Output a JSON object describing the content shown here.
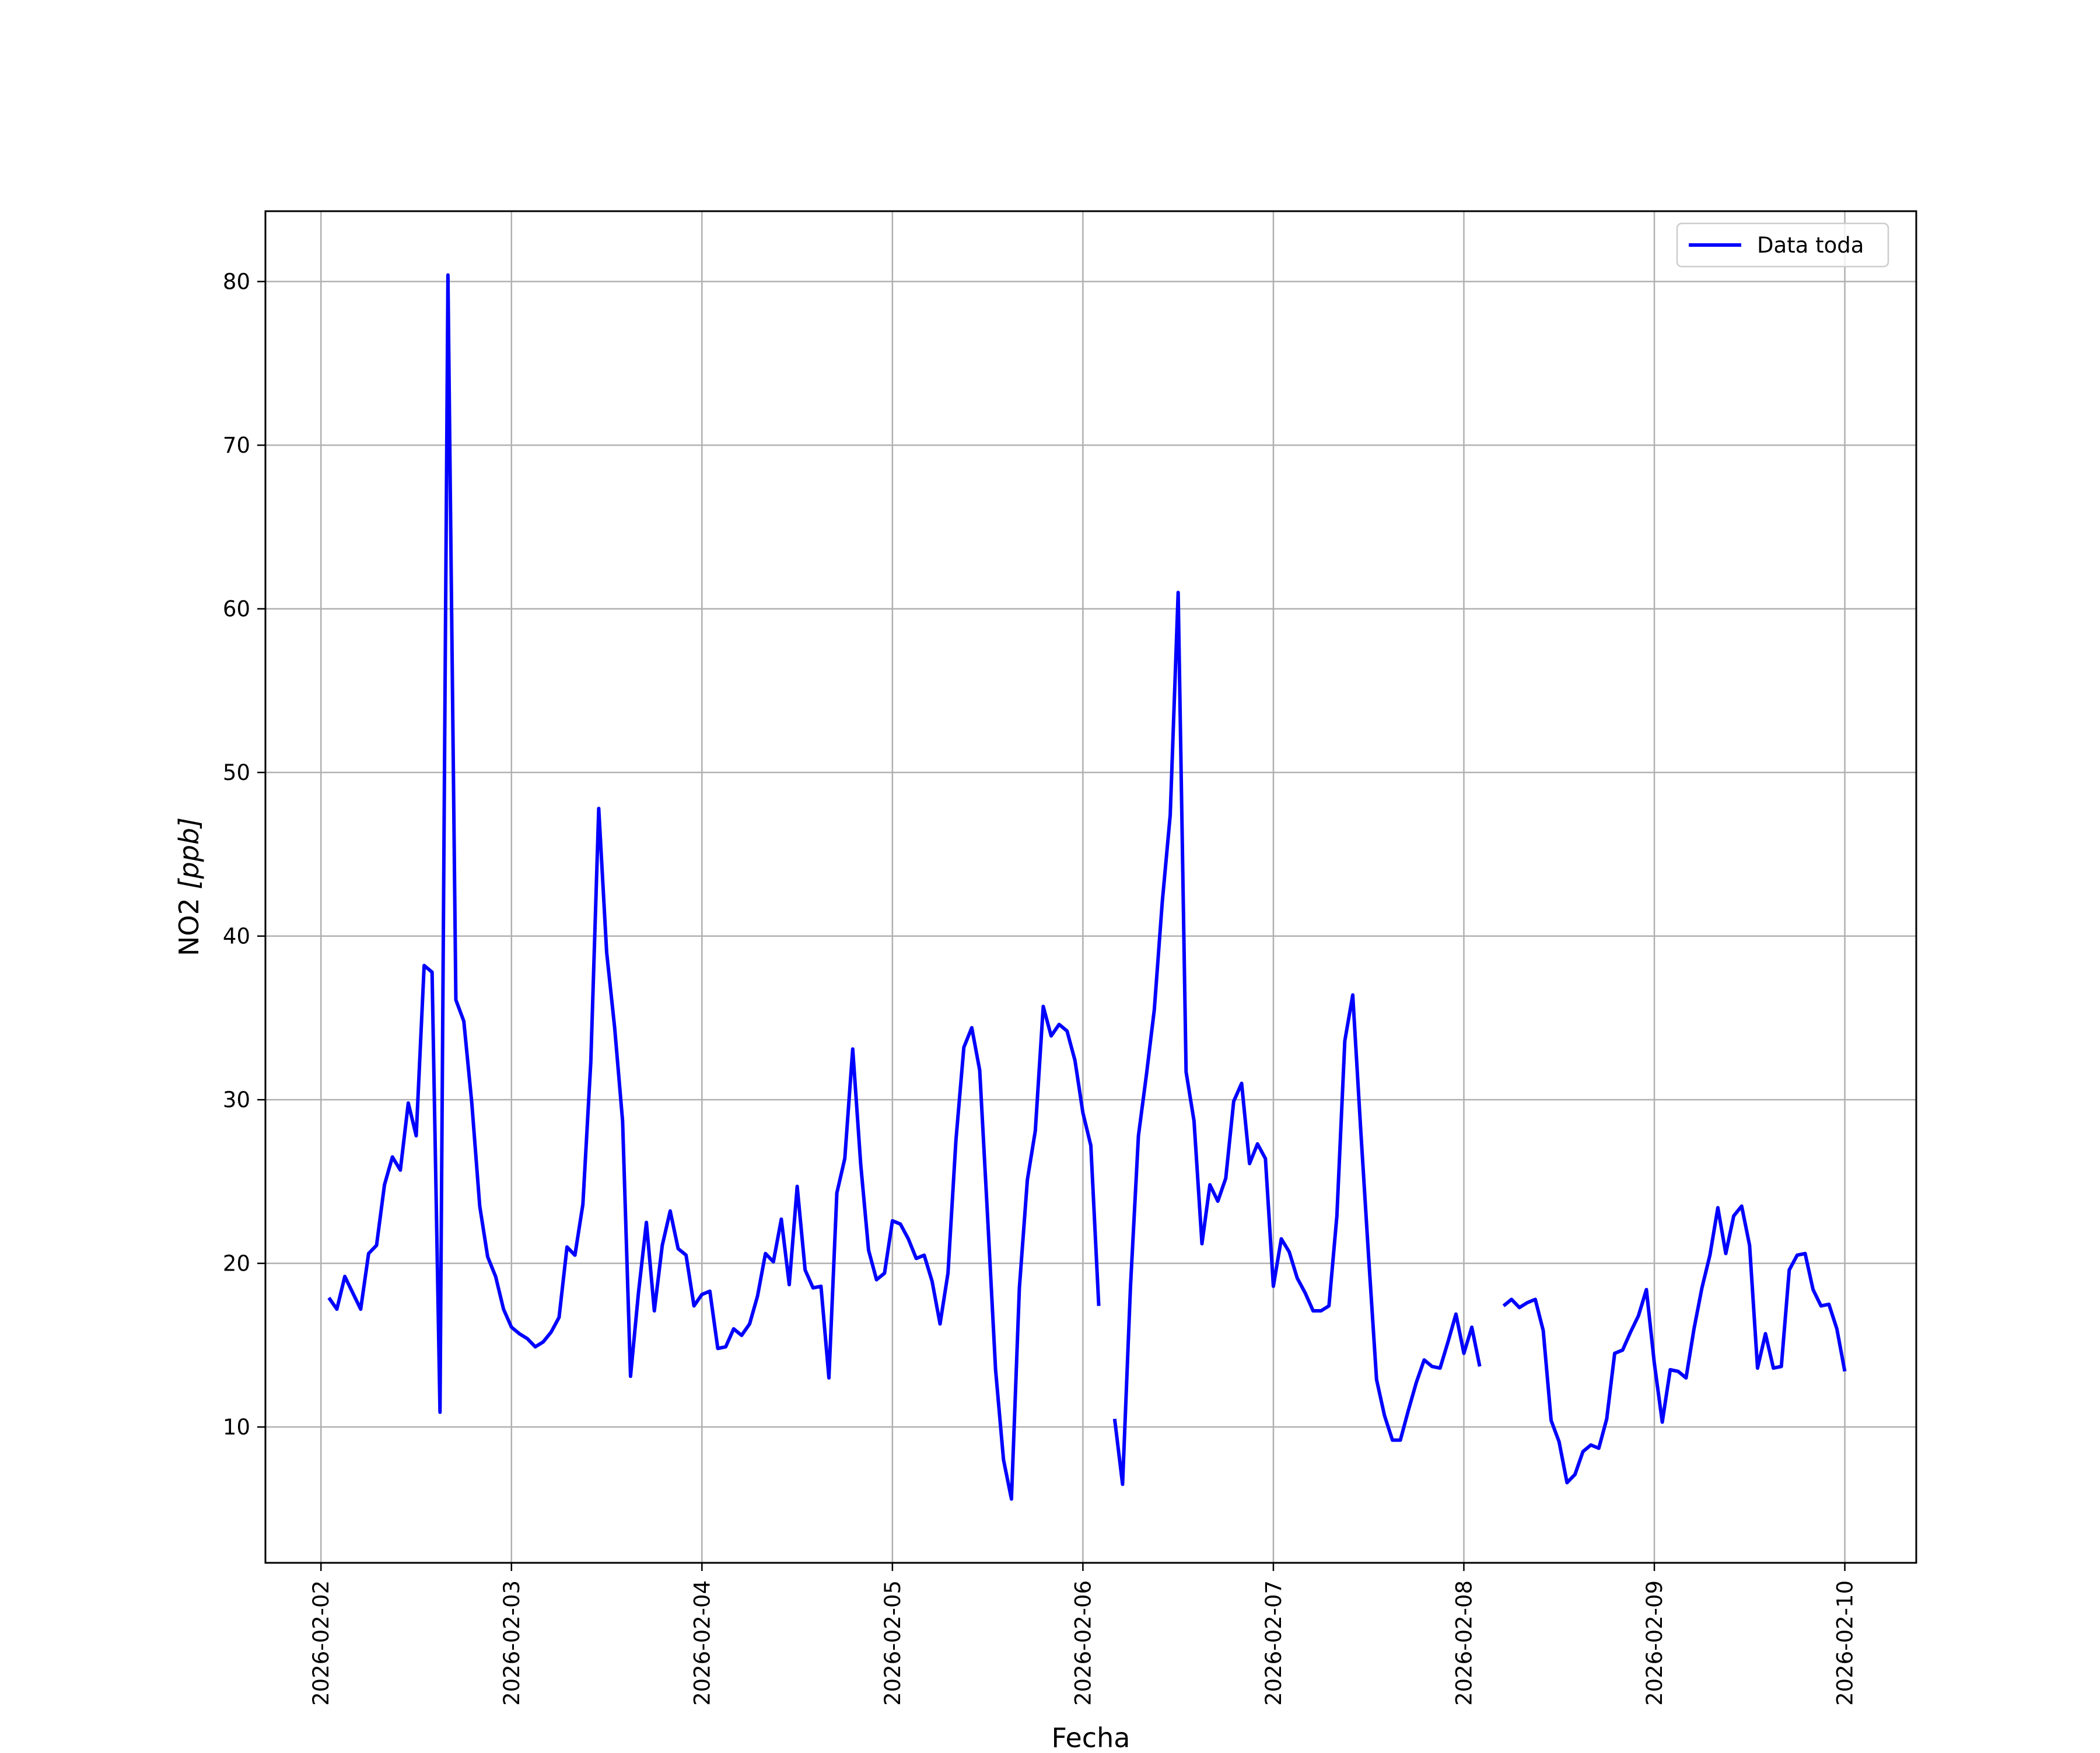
{
  "chart_data": {
    "type": "line",
    "title": "",
    "xlabel": "Fecha",
    "ylabel_text": "NO2 ",
    "ylabel_unit": "[ppb]",
    "x_start": "2026-02-02",
    "xlim": [
      "2026-02-01 17:00",
      "2026-02-10 09:00"
    ],
    "ylim": [
      1.7,
      84.3
    ],
    "x_ticks": [
      "2026-02-02",
      "2026-02-03",
      "2026-02-04",
      "2026-02-05",
      "2026-02-06",
      "2026-02-07",
      "2026-02-08",
      "2026-02-09",
      "2026-02-10"
    ],
    "y_ticks": [
      10,
      20,
      30,
      40,
      50,
      60,
      70,
      80
    ],
    "grid": true,
    "legend_position": "top-right",
    "series": [
      {
        "name": "Data toda",
        "color": "#0000ff",
        "segments": [
          [
            [
              "2026-02-02 01:00",
              17.9
            ],
            [
              "2026-02-02 02:00",
              17.2
            ],
            [
              "2026-02-02 03:00",
              19.2
            ],
            [
              "2026-02-02 04:00",
              18.2
            ],
            [
              "2026-02-02 05:00",
              17.2
            ],
            [
              "2026-02-02 06:00",
              20.6
            ],
            [
              "2026-02-02 07:00",
              21.1
            ],
            [
              "2026-02-02 08:00",
              24.8
            ],
            [
              "2026-02-02 09:00",
              26.5
            ],
            [
              "2026-02-02 10:00",
              25.7
            ],
            [
              "2026-02-02 11:00",
              29.8
            ],
            [
              "2026-02-02 12:00",
              27.8
            ],
            [
              "2026-02-02 13:00",
              38.2
            ],
            [
              "2026-02-02 14:00",
              37.8
            ],
            [
              "2026-02-02 15:00",
              10.9
            ],
            [
              "2026-02-02 16:00",
              80.4
            ],
            [
              "2026-02-02 17:00",
              36.1
            ],
            [
              "2026-02-02 18:00",
              34.8
            ],
            [
              "2026-02-02 19:00",
              29.8
            ],
            [
              "2026-02-02 20:00",
              23.5
            ],
            [
              "2026-02-02 21:00",
              20.4
            ],
            [
              "2026-02-02 22:00",
              19.2
            ],
            [
              "2026-02-02 23:00",
              17.2
            ],
            [
              "2026-02-03 00:00",
              16.1
            ],
            [
              "2026-02-03 01:00",
              15.7
            ],
            [
              "2026-02-03 02:00",
              15.4
            ],
            [
              "2026-02-03 03:00",
              14.9
            ],
            [
              "2026-02-03 04:00",
              15.2
            ],
            [
              "2026-02-03 05:00",
              15.8
            ],
            [
              "2026-02-03 06:00",
              16.7
            ],
            [
              "2026-02-03 07:00",
              21.0
            ],
            [
              "2026-02-03 08:00",
              20.5
            ],
            [
              "2026-02-03 09:00",
              23.6
            ],
            [
              "2026-02-03 10:00",
              32.3
            ],
            [
              "2026-02-03 11:00",
              47.8
            ],
            [
              "2026-02-03 12:00",
              39.0
            ],
            [
              "2026-02-03 13:00",
              34.4
            ],
            [
              "2026-02-03 14:00",
              28.7
            ],
            [
              "2026-02-03 15:00",
              13.1
            ],
            [
              "2026-02-03 16:00",
              18.2
            ],
            [
              "2026-02-03 17:00",
              22.5
            ],
            [
              "2026-02-03 18:00",
              17.1
            ],
            [
              "2026-02-03 19:00",
              21.1
            ],
            [
              "2026-02-03 20:00",
              23.2
            ],
            [
              "2026-02-03 21:00",
              20.9
            ],
            [
              "2026-02-03 22:00",
              20.5
            ],
            [
              "2026-02-03 23:00",
              17.4
            ],
            [
              "2026-02-04 00:00",
              18.1
            ],
            [
              "2026-02-04 01:00",
              18.3
            ],
            [
              "2026-02-04 02:00",
              14.8
            ],
            [
              "2026-02-04 03:00",
              14.9
            ],
            [
              "2026-02-04 04:00",
              16.0
            ],
            [
              "2026-02-04 05:00",
              15.6
            ],
            [
              "2026-02-04 06:00",
              16.3
            ],
            [
              "2026-02-04 07:00",
              18.0
            ],
            [
              "2026-02-04 08:00",
              20.6
            ],
            [
              "2026-02-04 09:00",
              20.1
            ],
            [
              "2026-02-04 10:00",
              22.7
            ],
            [
              "2026-02-04 11:00",
              18.7
            ],
            [
              "2026-02-04 12:00",
              24.7
            ],
            [
              "2026-02-04 13:00",
              19.6
            ],
            [
              "2026-02-04 14:00",
              18.5
            ],
            [
              "2026-02-04 15:00",
              18.6
            ],
            [
              "2026-02-04 16:00",
              13.0
            ],
            [
              "2026-02-04 17:00",
              24.3
            ],
            [
              "2026-02-04 18:00",
              26.4
            ],
            [
              "2026-02-04 19:00",
              33.1
            ],
            [
              "2026-02-04 20:00",
              26.1
            ],
            [
              "2026-02-04 21:00",
              20.8
            ],
            [
              "2026-02-04 22:00",
              19.0
            ],
            [
              "2026-02-04 23:00",
              19.4
            ],
            [
              "2026-02-05 00:00",
              22.6
            ],
            [
              "2026-02-05 01:00",
              22.4
            ],
            [
              "2026-02-05 02:00",
              21.5
            ],
            [
              "2026-02-05 03:00",
              20.3
            ],
            [
              "2026-02-05 04:00",
              20.5
            ],
            [
              "2026-02-05 05:00",
              18.9
            ],
            [
              "2026-02-05 06:00",
              16.3
            ],
            [
              "2026-02-05 07:00",
              19.4
            ],
            [
              "2026-02-05 08:00",
              27.5
            ],
            [
              "2026-02-05 09:00",
              33.2
            ],
            [
              "2026-02-05 10:00",
              34.4
            ],
            [
              "2026-02-05 11:00",
              31.8
            ],
            [
              "2026-02-05 12:00",
              22.8
            ],
            [
              "2026-02-05 13:00",
              13.5
            ],
            [
              "2026-02-05 14:00",
              8.0
            ],
            [
              "2026-02-05 15:00",
              5.6
            ],
            [
              "2026-02-05 16:00",
              18.5
            ],
            [
              "2026-02-05 17:00",
              25.1
            ],
            [
              "2026-02-05 18:00",
              28.1
            ],
            [
              "2026-02-05 19:00",
              35.7
            ],
            [
              "2026-02-05 20:00",
              33.9
            ],
            [
              "2026-02-05 21:00",
              34.6
            ],
            [
              "2026-02-05 22:00",
              34.2
            ],
            [
              "2026-02-05 23:00",
              32.4
            ],
            [
              "2026-02-06 00:00",
              29.2
            ],
            [
              "2026-02-06 01:00",
              27.2
            ],
            [
              "2026-02-06 02:00",
              17.4
            ]
          ],
          [
            [
              "2026-02-06 04:00",
              10.5
            ],
            [
              "2026-02-06 05:00",
              6.5
            ],
            [
              "2026-02-06 06:00",
              18.6
            ],
            [
              "2026-02-06 07:00",
              27.8
            ],
            [
              "2026-02-06 08:00",
              31.5
            ],
            [
              "2026-02-06 09:00",
              35.5
            ],
            [
              "2026-02-06 10:00",
              42.1
            ],
            [
              "2026-02-06 11:00",
              47.4
            ],
            [
              "2026-02-06 12:00",
              61.0
            ],
            [
              "2026-02-06 13:00",
              31.7
            ],
            [
              "2026-02-06 14:00",
              28.7
            ],
            [
              "2026-02-06 15:00",
              21.2
            ],
            [
              "2026-02-06 16:00",
              24.8
            ],
            [
              "2026-02-06 17:00",
              23.8
            ],
            [
              "2026-02-06 18:00",
              25.2
            ],
            [
              "2026-02-06 19:00",
              29.9
            ],
            [
              "2026-02-06 20:00",
              31.0
            ],
            [
              "2026-02-06 21:00",
              26.1
            ],
            [
              "2026-02-06 22:00",
              27.3
            ],
            [
              "2026-02-06 23:00",
              26.4
            ],
            [
              "2026-02-07 00:00",
              18.6
            ],
            [
              "2026-02-07 01:00",
              21.5
            ],
            [
              "2026-02-07 02:00",
              20.7
            ],
            [
              "2026-02-07 03:00",
              19.1
            ],
            [
              "2026-02-07 04:00",
              18.2
            ],
            [
              "2026-02-07 05:00",
              17.1
            ],
            [
              "2026-02-07 06:00",
              17.1
            ],
            [
              "2026-02-07 07:00",
              17.4
            ],
            [
              "2026-02-07 08:00",
              22.9
            ],
            [
              "2026-02-07 09:00",
              33.6
            ],
            [
              "2026-02-07 10:00",
              36.4
            ],
            [
              "2026-02-07 11:00",
              28.2
            ],
            [
              "2026-02-07 12:00",
              20.4
            ],
            [
              "2026-02-07 13:00",
              12.9
            ],
            [
              "2026-02-07 14:00",
              10.7
            ],
            [
              "2026-02-07 15:00",
              9.2
            ],
            [
              "2026-02-07 16:00",
              9.2
            ],
            [
              "2026-02-07 17:00",
              11.0
            ],
            [
              "2026-02-07 18:00",
              12.7
            ],
            [
              "2026-02-07 19:00",
              14.1
            ],
            [
              "2026-02-07 20:00",
              13.7
            ],
            [
              "2026-02-07 21:00",
              13.6
            ],
            [
              "2026-02-07 22:00",
              15.2
            ],
            [
              "2026-02-07 23:00",
              16.9
            ],
            [
              "2026-02-08 00:00",
              14.5
            ],
            [
              "2026-02-08 01:00",
              16.1
            ],
            [
              "2026-02-08 02:00",
              13.7
            ]
          ],
          [
            [
              "2026-02-08 05:00",
              17.4
            ],
            [
              "2026-02-08 06:00",
              17.8
            ],
            [
              "2026-02-08 07:00",
              17.3
            ],
            [
              "2026-02-08 08:00",
              17.6
            ],
            [
              "2026-02-08 09:00",
              17.8
            ],
            [
              "2026-02-08 10:00",
              15.9
            ],
            [
              "2026-02-08 11:00",
              10.4
            ],
            [
              "2026-02-08 12:00",
              9.1
            ],
            [
              "2026-02-08 13:00",
              6.6
            ],
            [
              "2026-02-08 14:00",
              7.1
            ],
            [
              "2026-02-08 15:00",
              8.5
            ],
            [
              "2026-02-08 16:00",
              8.9
            ],
            [
              "2026-02-08 17:00",
              8.7
            ],
            [
              "2026-02-08 18:00",
              10.5
            ],
            [
              "2026-02-08 19:00",
              14.5
            ],
            [
              "2026-02-08 20:00",
              14.7
            ],
            [
              "2026-02-08 21:00",
              15.8
            ],
            [
              "2026-02-08 22:00",
              16.8
            ],
            [
              "2026-02-08 23:00",
              18.4
            ],
            [
              "2026-02-09 00:00",
              13.9
            ],
            [
              "2026-02-09 01:00",
              10.3
            ],
            [
              "2026-02-09 02:00",
              13.5
            ],
            [
              "2026-02-09 03:00",
              13.4
            ],
            [
              "2026-02-09 04:00",
              13.0
            ],
            [
              "2026-02-09 05:00",
              16.0
            ],
            [
              "2026-02-09 06:00",
              18.5
            ],
            [
              "2026-02-09 07:00",
              20.5
            ],
            [
              "2026-02-09 08:00",
              23.4
            ],
            [
              "2026-02-09 09:00",
              20.6
            ],
            [
              "2026-02-09 10:00",
              22.9
            ],
            [
              "2026-02-09 11:00",
              23.5
            ],
            [
              "2026-02-09 12:00",
              21.1
            ],
            [
              "2026-02-09 13:00",
              13.6
            ],
            [
              "2026-02-09 14:00",
              15.7
            ],
            [
              "2026-02-09 15:00",
              13.6
            ],
            [
              "2026-02-09 16:00",
              13.7
            ],
            [
              "2026-02-09 17:00",
              19.6
            ],
            [
              "2026-02-09 18:00",
              20.5
            ],
            [
              "2026-02-09 19:00",
              20.6
            ],
            [
              "2026-02-09 20:00",
              18.4
            ],
            [
              "2026-02-09 21:00",
              17.4
            ],
            [
              "2026-02-09 22:00",
              17.5
            ],
            [
              "2026-02-09 23:00",
              16.0
            ],
            [
              "2026-02-10 00:00",
              13.4
            ]
          ]
        ]
      }
    ]
  }
}
